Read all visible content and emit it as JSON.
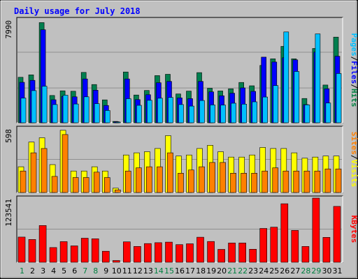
{
  "chart_data": [
    {
      "type": "bar",
      "title": "Daily usage for July 2018",
      "x": [
        "1",
        "2",
        "3",
        "4",
        "5",
        "6",
        "7",
        "8",
        "9",
        "10",
        "11",
        "12",
        "13",
        "14",
        "15",
        "16",
        "17",
        "18",
        "19",
        "20",
        "21",
        "22",
        "23",
        "24",
        "25",
        "26",
        "27",
        "28",
        "29",
        "30",
        "31"
      ],
      "x_weekend": [
        "1",
        "7",
        "8",
        "14",
        "15",
        "21",
        "22",
        "28",
        "29"
      ],
      "ylabel_ticks": [
        "7990"
      ],
      "ylim": [
        0,
        7990
      ],
      "grid": true,
      "legend": "right side, vertical",
      "legend_items": [
        {
          "text": "Pages",
          "color": "#00c0ff"
        },
        {
          "text": "Files",
          "color": "#0000ff"
        },
        {
          "text": "Hits",
          "color": "#008040"
        }
      ],
      "series": [
        {
          "name": "Hits",
          "color": "#007f4f",
          "values": [
            3520,
            3710,
            7750,
            2110,
            2470,
            2440,
            3900,
            2960,
            1770,
            100,
            3930,
            2150,
            2500,
            3650,
            3750,
            2230,
            2450,
            3880,
            2670,
            2460,
            2630,
            3120,
            2860,
            4440,
            4950,
            5910,
            4950,
            1880,
            5750,
            2920,
            6630
          ]
        },
        {
          "name": "Files",
          "color": "#0000ff",
          "values": [
            3130,
            3280,
            7200,
            1780,
            2040,
            2010,
            3390,
            2520,
            1340,
            80,
            3390,
            1790,
            2170,
            3100,
            3200,
            1930,
            1870,
            3200,
            2390,
            2090,
            2290,
            2700,
            2430,
            5080,
            4700,
            5030,
            4870,
            1410,
            5470,
            2630,
            5150
          ]
        },
        {
          "name": "Pages",
          "color": "#00c0ff",
          "values": [
            1910,
            2490,
            2830,
            1410,
            2130,
            1450,
            2010,
            1480,
            950,
            20,
            1860,
            1350,
            1740,
            1900,
            1960,
            1410,
            1290,
            1720,
            1380,
            1370,
            1510,
            1440,
            1620,
            1990,
            2880,
            7030,
            3970,
            1390,
            6880,
            1530,
            3810
          ]
        }
      ]
    },
    {
      "type": "bar",
      "x": [
        "1",
        "2",
        "3",
        "4",
        "5",
        "6",
        "7",
        "8",
        "9",
        "10",
        "11",
        "12",
        "13",
        "14",
        "15",
        "16",
        "17",
        "18",
        "19",
        "20",
        "21",
        "22",
        "23",
        "24",
        "25",
        "26",
        "27",
        "28",
        "29",
        "30",
        "31"
      ],
      "ylabel_ticks": [
        "598"
      ],
      "ylim": [
        0,
        598
      ],
      "grid": true,
      "legend": "right side, vertical",
      "legend_items": [
        {
          "text": "Sites",
          "color": "#ff8000"
        },
        {
          "text": "Visits",
          "color": "#ffff00"
        }
      ],
      "series": [
        {
          "name": "Visits",
          "color": "#ffff00",
          "values": [
            240,
            470,
            510,
            260,
            580,
            200,
            200,
            240,
            200,
            40,
            350,
            370,
            380,
            410,
            530,
            340,
            350,
            410,
            440,
            380,
            330,
            330,
            350,
            420,
            410,
            410,
            370,
            320,
            330,
            340,
            340
          ]
        },
        {
          "name": "Sites",
          "color": "#ff8000",
          "values": [
            200,
            370,
            410,
            150,
            540,
            140,
            140,
            190,
            140,
            25,
            200,
            230,
            240,
            240,
            370,
            180,
            210,
            240,
            280,
            280,
            180,
            180,
            180,
            200,
            230,
            200,
            200,
            200,
            200,
            220,
            220
          ]
        }
      ]
    },
    {
      "type": "bar",
      "x": [
        "1",
        "2",
        "3",
        "4",
        "5",
        "6",
        "7",
        "8",
        "9",
        "10",
        "11",
        "12",
        "13",
        "14",
        "15",
        "16",
        "17",
        "18",
        "19",
        "20",
        "21",
        "22",
        "23",
        "24",
        "25",
        "26",
        "27",
        "28",
        "29",
        "30",
        "31"
      ],
      "ylabel_ticks": [
        "123541"
      ],
      "ylim": [
        0,
        123541
      ],
      "grid": true,
      "legend": "right side, vertical",
      "legend_items": [
        {
          "text": "KBytes",
          "color": "#ff0000"
        }
      ],
      "series": [
        {
          "name": "KBytes",
          "color": "#ff0000",
          "values": [
            48500,
            43900,
            70800,
            28400,
            39700,
            31500,
            46300,
            45200,
            21200,
            3400,
            39400,
            30500,
            36000,
            37800,
            38800,
            34000,
            35600,
            48200,
            40000,
            24900,
            37000,
            37000,
            25100,
            65100,
            67600,
            112700,
            61400,
            30500,
            123500,
            48000,
            107600
          ]
        }
      ]
    }
  ],
  "colors": {
    "background": "#c0c0c0",
    "plot_bg": "#c0c0c0",
    "gridline": "#909090",
    "day_weekday": "#000000",
    "day_weekend": "#008040"
  }
}
